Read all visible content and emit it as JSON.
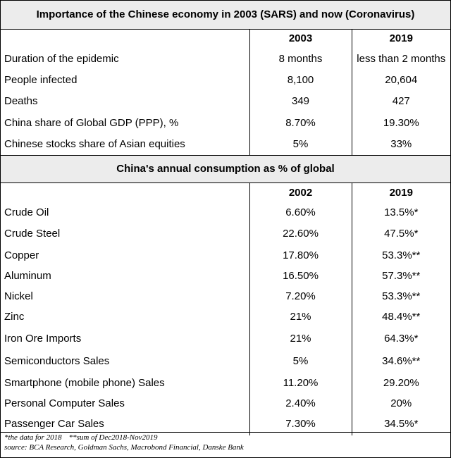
{
  "section1": {
    "title": "Importance of the Chinese economy in 2003 (SARS) and now (Coronavirus)",
    "col2": "2003",
    "col3": "2019",
    "rows": [
      {
        "label": "Duration of the epidemic",
        "a": "8 months",
        "b": "less than 2 months"
      },
      {
        "label": "People infected",
        "a": "8,100",
        "b": "20,604"
      },
      {
        "label": "Deaths",
        "a": "349",
        "b": "427"
      },
      {
        "label": "China share of Global GDP (PPP), %",
        "a": "8.70%",
        "b": "19.30%"
      },
      {
        "label": "Chinese stocks share of Asian equities",
        "a": "5%",
        "b": "33%"
      }
    ]
  },
  "section2": {
    "title": "China's annual consumption as % of global",
    "col2": "2002",
    "col3": "2019",
    "rows": [
      {
        "label": "Crude Oil",
        "a": "6.60%",
        "b": "13.5%*"
      },
      {
        "label": "Crude Steel",
        "a": "22.60%",
        "b": "47.5%*"
      },
      {
        "label": "Copper",
        "a": "17.80%",
        "b": "53.3%**"
      },
      {
        "label": "Aluminum",
        "a": "16.50%",
        "b": "57.3%**"
      },
      {
        "label": "Nickel",
        "a": "7.20%",
        "b": "53.3%**"
      },
      {
        "label": "Zinc",
        "a": "21%",
        "b": "48.4%**"
      },
      {
        "label": "Iron Ore Imports",
        "a": "21%",
        "b": "64.3%*"
      },
      {
        "label": "Semiconductors Sales",
        "a": "5%",
        "b": "34.6%**"
      },
      {
        "label": "Smartphone (mobile phone) Sales",
        "a": "11.20%",
        "b": "29.20%"
      },
      {
        "label": "Personal Computer Sales",
        "a": "2.40%",
        "b": "20%"
      },
      {
        "label": "Passenger Car Sales",
        "a": "7.30%",
        "b": "34.5%*"
      }
    ]
  },
  "footer": {
    "note1": "*the data for 2018",
    "note2": "**sum of Dec2018-Nov2019",
    "source": "source: BCA Research, Goldman Sachs, Macrobond Financial, Danske Bank"
  }
}
